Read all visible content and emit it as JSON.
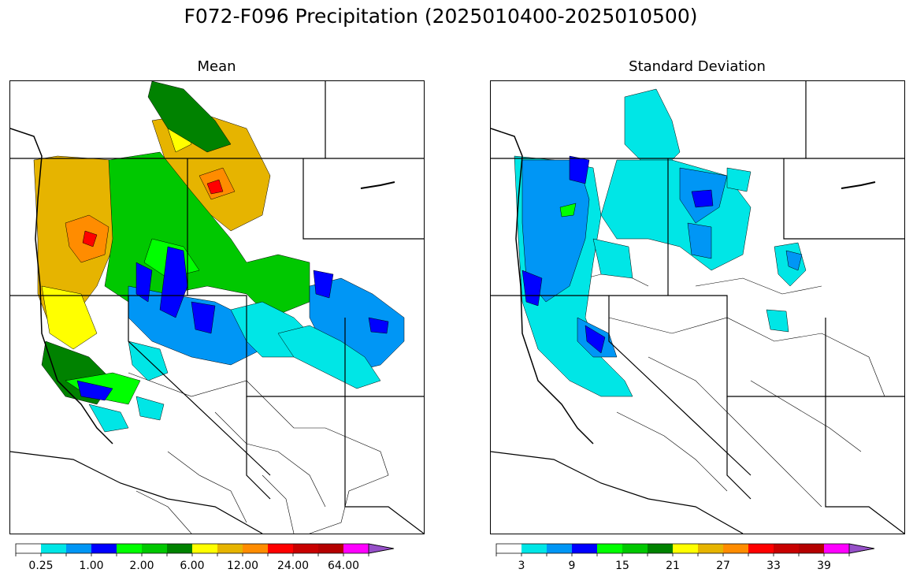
{
  "figure_title": "F072-F096 Precipitation (2025010400-2025010500)",
  "panels": [
    {
      "title": "Mean"
    },
    {
      "title": "Standard Deviation"
    }
  ],
  "mean_colorbar": {
    "labels": [
      "0.25",
      "1.00",
      "2.00",
      "6.00",
      "12.00",
      "24.00",
      "64.00"
    ],
    "colors": [
      "#ffffff",
      "#00e6e6",
      "#0096f5",
      "#0000ff",
      "#00ff00",
      "#00c800",
      "#008200",
      "#ffff00",
      "#e6b400",
      "#ff8c00",
      "#ff0000",
      "#c80000",
      "#b40000",
      "#ff00ff",
      "#9650c8"
    ]
  },
  "sd_colorbar": {
    "labels": [
      "3",
      "9",
      "15",
      "21",
      "27",
      "33",
      "39"
    ],
    "colors": [
      "#ffffff",
      "#00e6e6",
      "#0096f5",
      "#0000ff",
      "#00ff00",
      "#00c800",
      "#008200",
      "#ffff00",
      "#e6b400",
      "#ff8c00",
      "#ff0000",
      "#c80000",
      "#b40000",
      "#ff00ff",
      "#9650c8"
    ]
  }
}
